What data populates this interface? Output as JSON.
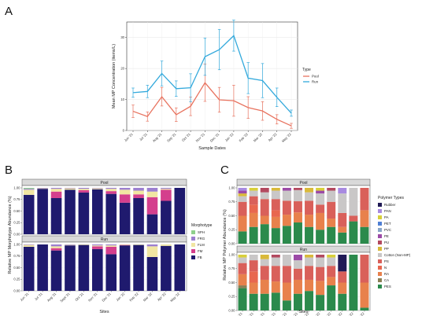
{
  "panels": {
    "a": "A",
    "b": "B",
    "c": "C"
  },
  "chart_data": [
    {
      "type": "line",
      "panel": "A",
      "xlabel": "Sample Dates",
      "ylabel": "Mean MP Concentration (items/L)",
      "categories": [
        "Jun '21",
        "Jul '21",
        "Aug '21",
        "Sep '21",
        "Oct '21",
        "Nov '21",
        "Dec '21",
        "Jan '22",
        "Feb '22",
        "Mar '22",
        "Apr '22",
        "May '22"
      ],
      "ylim": [
        0,
        35
      ],
      "yticks": [
        0,
        10,
        20,
        30
      ],
      "legend": {
        "title": "Type",
        "position": "right"
      },
      "series": [
        {
          "name": "Pool",
          "color": "#e8735f",
          "values": [
            6.2,
            4.5,
            10.9,
            5.1,
            7.8,
            15.4,
            9.9,
            9.6,
            7.4,
            6.3,
            3.6,
            1.5
          ],
          "errors": [
            2.0,
            1.5,
            3.0,
            2.2,
            3.0,
            6.0,
            4.0,
            5.0,
            3.5,
            3.0,
            1.5,
            0.8
          ]
        },
        {
          "name": "Run",
          "color": "#33a9dc",
          "values": [
            12.2,
            12.6,
            18.4,
            13.5,
            13.8,
            23.8,
            26.1,
            30.6,
            16.9,
            16.1,
            10.7,
            5.6
          ],
          "errors": [
            1.5,
            2.0,
            4.0,
            2.5,
            4.5,
            6.0,
            6.5,
            5.0,
            5.0,
            5.5,
            3.0,
            1.0
          ]
        }
      ],
      "grid": true
    },
    {
      "type": "bar",
      "stacked": true,
      "panel": "B",
      "xlabel": "Sites",
      "ylabel": "Relative MP Morphotype Abundance (%)",
      "facets": [
        "Pool",
        "Run"
      ],
      "categories": [
        "Jun '21",
        "Jul '21",
        "Aug '21",
        "Sept '21",
        "Oct '21",
        "Nov '21",
        "Dec '21",
        "Jan '22",
        "Feb '22",
        "Mar '22",
        "Apr '22",
        "May '22"
      ],
      "yticks": [
        "0.00",
        "0.25",
        "0.50",
        "0.75",
        "1.00"
      ],
      "legend": {
        "title": "Morphotype",
        "position": "right",
        "entries": [
          "SPH",
          "FRG",
          "FLM",
          "FM",
          "FB"
        ]
      },
      "colors": {
        "FB": "#1f1a6e",
        "FM": "#d43f8d",
        "FLM": "#f1e6a2",
        "FRG": "#9c7fd0",
        "SPH": "#8fd08c"
      },
      "series_order": [
        "FB",
        "FM",
        "FLM",
        "FRG",
        "SPH"
      ],
      "data": {
        "Pool": [
          {
            "FB": 0.85,
            "FM": 0.0,
            "FLM": 0.11,
            "FRG": 0.02,
            "SPH": 0.02
          },
          {
            "FB": 0.98,
            "FM": 0.0,
            "FLM": 0.01,
            "FRG": 0.01,
            "SPH": 0.0
          },
          {
            "FB": 0.78,
            "FM": 0.14,
            "FLM": 0.06,
            "FRG": 0.02,
            "SPH": 0.0
          },
          {
            "FB": 0.96,
            "FM": 0.0,
            "FLM": 0.03,
            "FRG": 0.01,
            "SPH": 0.0
          },
          {
            "FB": 0.9,
            "FM": 0.05,
            "FLM": 0.03,
            "FRG": 0.02,
            "SPH": 0.0
          },
          {
            "FB": 0.97,
            "FM": 0.0,
            "FLM": 0.02,
            "FRG": 0.01,
            "SPH": 0.0
          },
          {
            "FB": 0.87,
            "FM": 0.06,
            "FLM": 0.05,
            "FRG": 0.02,
            "SPH": 0.0
          },
          {
            "FB": 0.68,
            "FM": 0.18,
            "FLM": 0.1,
            "FRG": 0.04,
            "SPH": 0.0
          },
          {
            "FB": 0.78,
            "FM": 0.08,
            "FLM": 0.08,
            "FRG": 0.06,
            "SPH": 0.0
          },
          {
            "FB": 0.43,
            "FM": 0.37,
            "FLM": 0.12,
            "FRG": 0.08,
            "SPH": 0.0
          },
          {
            "FB": 0.72,
            "FM": 0.24,
            "FLM": 0.02,
            "FRG": 0.02,
            "SPH": 0.0
          },
          {
            "FB": 1.0,
            "FM": 0.0,
            "FLM": 0.0,
            "FRG": 0.0,
            "SPH": 0.0
          }
        ],
        "Run": [
          {
            "FB": 0.95,
            "FM": 0.0,
            "FLM": 0.04,
            "FRG": 0.01,
            "SPH": 0.0
          },
          {
            "FB": 1.0,
            "FM": 0.0,
            "FLM": 0.0,
            "FRG": 0.0,
            "SPH": 0.0
          },
          {
            "FB": 0.87,
            "FM": 0.05,
            "FLM": 0.04,
            "FRG": 0.04,
            "SPH": 0.0
          },
          {
            "FB": 0.98,
            "FM": 0.0,
            "FLM": 0.01,
            "FRG": 0.01,
            "SPH": 0.0
          },
          {
            "FB": 0.99,
            "FM": 0.0,
            "FLM": 0.01,
            "FRG": 0.0,
            "SPH": 0.0
          },
          {
            "FB": 0.9,
            "FM": 0.06,
            "FLM": 0.02,
            "FRG": 0.02,
            "SPH": 0.0
          },
          {
            "FB": 0.79,
            "FM": 0.16,
            "FLM": 0.03,
            "FRG": 0.02,
            "SPH": 0.0
          },
          {
            "FB": 0.98,
            "FM": 0.01,
            "FLM": 0.01,
            "FRG": 0.0,
            "SPH": 0.0
          },
          {
            "FB": 0.99,
            "FM": 0.0,
            "FLM": 0.01,
            "FRG": 0.0,
            "SPH": 0.0
          },
          {
            "FB": 0.73,
            "FM": 0.0,
            "FLM": 0.23,
            "FRG": 0.04,
            "SPH": 0.0
          },
          {
            "FB": 0.97,
            "FM": 0.0,
            "FLM": 0.03,
            "FRG": 0.0,
            "SPH": 0.0
          },
          {
            "FB": 1.0,
            "FM": 0.0,
            "FLM": 0.0,
            "FRG": 0.0,
            "SPH": 0.0
          }
        ]
      }
    },
    {
      "type": "bar",
      "stacked": true,
      "panel": "C",
      "xlabel": "Sites",
      "ylabel": "Relative MP Polymer Abundance (%)",
      "facets": [
        "Pool",
        "Run"
      ],
      "categories": [
        "Jun '21",
        "Jul '21",
        "Aug '21",
        "Sept '21",
        "Oct '21",
        "Nov '21",
        "Dec '21",
        "Jan '22",
        "Feb '22",
        "Mar '22",
        "Apr '22",
        "May '22"
      ],
      "yticks": [
        "0.00",
        "0.25",
        "0.50",
        "0.75",
        "1.00"
      ],
      "legend": {
        "title": "Polymer Types",
        "position": "right",
        "entries": [
          "Rubber",
          "PAN",
          "PA",
          "PET",
          "PVC",
          "PE",
          "PU",
          "PP",
          "Cotton (Non-MP)",
          "PS",
          "N",
          "RA",
          "CA",
          "PES"
        ]
      },
      "colors": {
        "PES": "#2b8a4c",
        "CA": "#8a7f55",
        "RA": "#e8814c",
        "N": "#e8674f",
        "PS": "#d9605a",
        "Cotton (Non-MP)": "#c9c7c7",
        "PP": "#d9b93a",
        "PU": "#b3495f",
        "PE": "#9c4aa7",
        "PVC": "#8aa6c7",
        "PET": "#4f7fd4",
        "PA": "#d8cf3a",
        "PAN": "#a88ae0",
        "Rubber": "#201a55"
      },
      "series_order": [
        "PES",
        "CA",
        "RA",
        "N",
        "PS",
        "Cotton (Non-MP)",
        "PP",
        "PU",
        "PE",
        "PVC",
        "PET",
        "PA",
        "PAN",
        "Rubber"
      ],
      "data": {
        "Pool": [
          {
            "PES": 0.22,
            "RA": 0.28,
            "PS": 0.25,
            "Cotton (Non-MP)": 0.1,
            "PP": 0.05,
            "PE": 0.05,
            "PAN": 0.05
          },
          {
            "PES": 0.3,
            "RA": 0.25,
            "N": 0.15,
            "PS": 0.15,
            "Cotton (Non-MP)": 0.1,
            "PA": 0.05
          },
          {
            "PES": 0.35,
            "RA": 0.15,
            "PS": 0.3,
            "Cotton (Non-MP)": 0.12,
            "PU": 0.08
          },
          {
            "PES": 0.28,
            "RA": 0.2,
            "N": 0.12,
            "PS": 0.2,
            "Cotton (Non-MP)": 0.15,
            "PP": 0.05
          },
          {
            "PES": 0.32,
            "RA": 0.2,
            "PS": 0.25,
            "Cotton (Non-MP)": 0.18,
            "PE": 0.05
          },
          {
            "PES": 0.38,
            "RA": 0.18,
            "PS": 0.2,
            "Cotton (Non-MP)": 0.2,
            "PU": 0.04
          },
          {
            "PES": 0.3,
            "RA": 0.22,
            "PS": 0.25,
            "Cotton (Non-MP)": 0.15,
            "PP": 0.08
          },
          {
            "PES": 0.25,
            "RA": 0.3,
            "PS": 0.15,
            "Cotton (Non-MP)": 0.2,
            "PA": 0.05,
            "PE": 0.05
          },
          {
            "PES": 0.3,
            "RA": 0.15,
            "PS": 0.3,
            "Cotton (Non-MP)": 0.2,
            "PU": 0.05
          },
          {
            "PES": 0.2,
            "RA": 0.1,
            "PS": 0.25,
            "Cotton (Non-MP)": 0.35,
            "PAN": 0.1
          },
          {
            "PES": 0.4,
            "PS": 0.1,
            "Cotton (Non-MP)": 0.5
          },
          {
            "PES": 0.3,
            "RA": 0.3,
            "PS": 0.4
          }
        ],
        "Run": [
          {
            "PES": 0.4,
            "RA": 0.2,
            "PS": 0.2,
            "Cotton (Non-MP)": 0.1,
            "CA": 0.05,
            "PA": 0.05
          },
          {
            "PES": 0.3,
            "RA": 0.2,
            "N": 0.2,
            "PS": 0.2,
            "Cotton (Non-MP)": 0.1
          },
          {
            "PES": 0.3,
            "RA": 0.25,
            "PS": 0.25,
            "Cotton (Non-MP)": 0.12,
            "PP": 0.08
          },
          {
            "PES": 0.32,
            "RA": 0.2,
            "PS": 0.28,
            "Cotton (Non-MP)": 0.15,
            "PU": 0.05
          },
          {
            "PES": 0.18,
            "RA": 0.32,
            "PS": 0.3,
            "Cotton (Non-MP)": 0.2
          },
          {
            "PES": 0.3,
            "RA": 0.25,
            "PS": 0.2,
            "Cotton (Non-MP)": 0.15,
            "PE": 0.1
          },
          {
            "PES": 0.35,
            "RA": 0.2,
            "PS": 0.25,
            "Cotton (Non-MP)": 0.15,
            "PP": 0.05
          },
          {
            "PES": 0.28,
            "RA": 0.25,
            "PS": 0.25,
            "Cotton (Non-MP)": 0.17,
            "PU": 0.05
          },
          {
            "PES": 0.45,
            "RA": 0.15,
            "PS": 0.2,
            "Cotton (Non-MP)": 0.15,
            "PA": 0.05
          },
          {
            "PES": 0.3,
            "RA": 0.2,
            "PS": 0.2,
            "Rubber": 0.3
          },
          {
            "PES": 1.0
          },
          {
            "PES": 0.05,
            "RA": 0.45,
            "PS": 0.5
          }
        ]
      }
    }
  ]
}
